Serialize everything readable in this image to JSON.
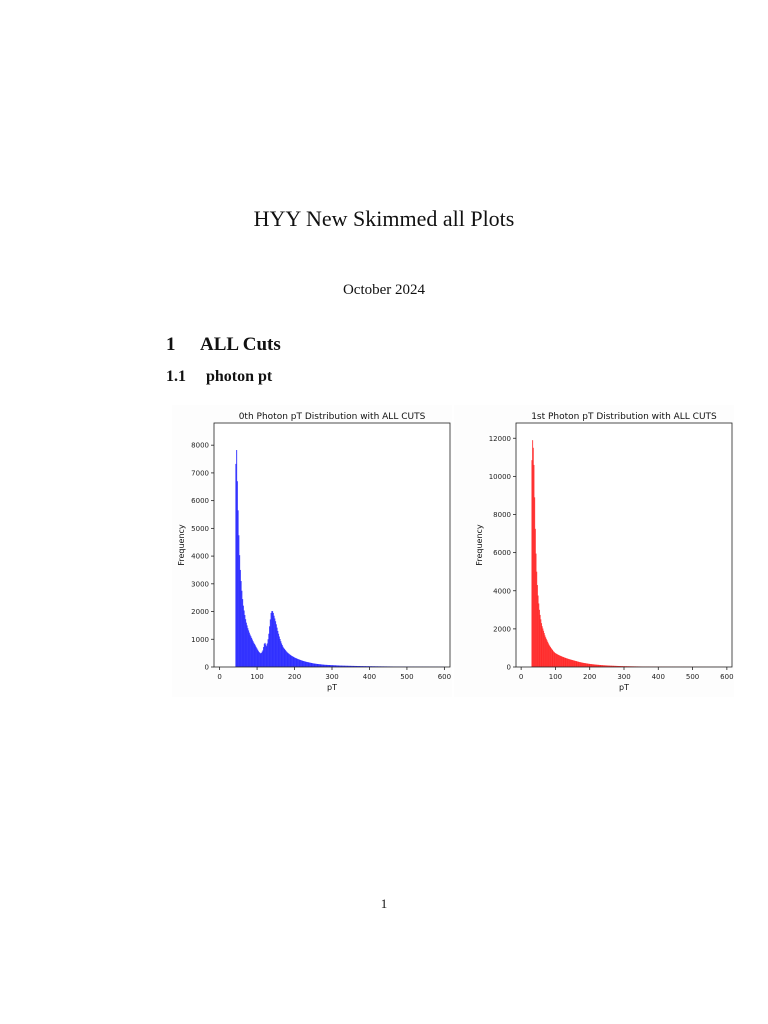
{
  "document": {
    "title": "HYY New Skimmed all Plots",
    "date": "October 2024",
    "page_number": "1"
  },
  "section": {
    "number": "1",
    "title": "ALL Cuts"
  },
  "subsection": {
    "number": "1.1",
    "title": "photon pt"
  },
  "chart_data": [
    {
      "type": "bar",
      "title": "0th Photon pT Distribution with ALL CUTS",
      "xlabel": "pT",
      "ylabel": "Frequency",
      "color": "#0000ff",
      "xlim": [
        -15,
        615
      ],
      "ylim": [
        0,
        8800
      ],
      "xticks": [
        0,
        100,
        200,
        300,
        400,
        500,
        600
      ],
      "yticks": [
        0,
        1000,
        2000,
        3000,
        4000,
        5000,
        6000,
        7000,
        8000
      ],
      "grid": false,
      "x": [
        42,
        44,
        46,
        48,
        50,
        52,
        55,
        58,
        62,
        66,
        70,
        75,
        80,
        85,
        90,
        95,
        100,
        105,
        110,
        115,
        120,
        125,
        128,
        131,
        134,
        137,
        140,
        143,
        146,
        150,
        155,
        160,
        165,
        170,
        180,
        190,
        200,
        210,
        220,
        230,
        240,
        250,
        260,
        270,
        280,
        300,
        320,
        340,
        360,
        380,
        400,
        420,
        450,
        480,
        500,
        550,
        600
      ],
      "values": [
        6300,
        8350,
        7300,
        6100,
        5200,
        4300,
        3500,
        2900,
        2300,
        1950,
        1650,
        1400,
        1200,
        1050,
        900,
        780,
        650,
        540,
        480,
        600,
        900,
        750,
        900,
        1200,
        1600,
        1950,
        2050,
        1950,
        1800,
        1600,
        1300,
        1050,
        850,
        700,
        530,
        420,
        340,
        280,
        230,
        190,
        160,
        130,
        110,
        95,
        80,
        65,
        52,
        44,
        38,
        32,
        28,
        24,
        20,
        16,
        14,
        10,
        6
      ]
    },
    {
      "type": "bar",
      "title": "1st Photon pT Distribution with ALL CUTS",
      "xlabel": "pT",
      "ylabel": "Frequency",
      "color": "#ff0000",
      "xlim": [
        -15,
        615
      ],
      "ylim": [
        0,
        12800
      ],
      "xticks": [
        0,
        100,
        200,
        300,
        400,
        500,
        600
      ],
      "yticks": [
        0,
        2000,
        4000,
        6000,
        8000,
        10000,
        12000
      ],
      "grid": false,
      "x": [
        30,
        32,
        34,
        36,
        38,
        40,
        42,
        44,
        46,
        48,
        50,
        53,
        56,
        60,
        65,
        70,
        75,
        80,
        85,
        90,
        95,
        100,
        110,
        120,
        130,
        140,
        150,
        160,
        170,
        180,
        190,
        200,
        220,
        240,
        260,
        280,
        300,
        330,
        360,
        400,
        450,
        500,
        550,
        600
      ],
      "values": [
        9500,
        12200,
        11600,
        11400,
        9800,
        8000,
        6500,
        5400,
        4600,
        4000,
        3500,
        3000,
        2600,
        2200,
        1900,
        1600,
        1400,
        1200,
        1050,
        920,
        800,
        720,
        620,
        540,
        470,
        410,
        360,
        310,
        260,
        220,
        190,
        160,
        120,
        90,
        70,
        55,
        42,
        32,
        24,
        18,
        12,
        8,
        5,
        3
      ]
    }
  ]
}
